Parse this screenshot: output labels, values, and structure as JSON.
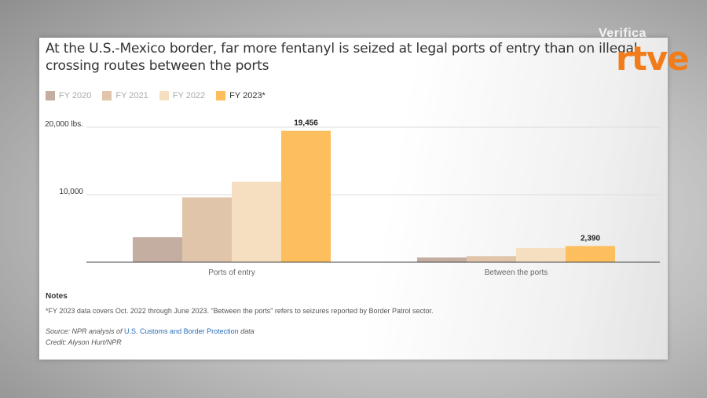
{
  "title": "At the U.S.-Mexico border, far more fentanyl is seized at legal ports of entry than on illegal crossing routes between the ports",
  "legend": [
    {
      "label": "FY 2020",
      "color": "#c4ada1"
    },
    {
      "label": "FY 2021",
      "color": "#e0c5ab"
    },
    {
      "label": "FY 2022",
      "color": "#f6dfc0"
    },
    {
      "label": "FY 2023*",
      "color": "#fdbe5d"
    }
  ],
  "chart_data": {
    "type": "bar",
    "categories": [
      "Ports of entry",
      "Between the ports"
    ],
    "series": [
      {
        "name": "FY 2020",
        "values": [
          3700,
          700
        ]
      },
      {
        "name": "FY 2021",
        "values": [
          9600,
          900
        ]
      },
      {
        "name": "FY 2022",
        "values": [
          11900,
          2100
        ]
      },
      {
        "name": "FY 2023*",
        "values": [
          19456,
          2390
        ]
      }
    ],
    "data_labels": [
      "19,456",
      "2,390"
    ],
    "yticks": [
      {
        "value": 10000,
        "label": "10,000"
      },
      {
        "value": 20000,
        "label": "20,000 lbs."
      }
    ],
    "ylim": [
      0,
      20000
    ],
    "grid": true,
    "legend_position": "top-left"
  },
  "notes": {
    "heading": "Notes",
    "text": "*FY 2023 data covers Oct. 2022 through June 2023. \"Between the ports\" refers to seizures reported by Border Patrol sector.",
    "source_prefix": "Source: NPR analysis of ",
    "source_link": "U.S. Customs and Border Protection",
    "source_suffix": " data",
    "credit": "Credit: Alyson Hurt/NPR"
  },
  "watermark": {
    "verifica": "Verifica",
    "rtve": "rtve",
    "rtve_color": "#f07d1a"
  }
}
